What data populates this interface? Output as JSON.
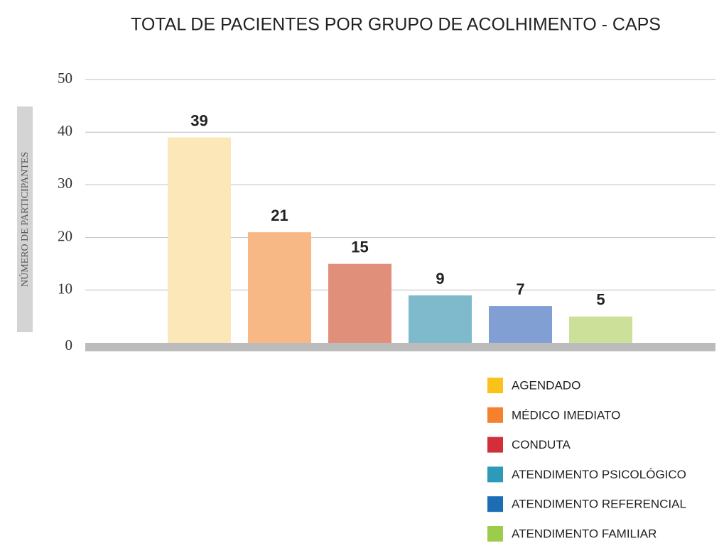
{
  "chart_data": {
    "type": "bar",
    "title": "TOTAL DE PACIENTES POR GRUPO DE ACOLHIMENTO - CAPS",
    "y_label": "NÚMERO DE PARTICIPANTES",
    "categories": [
      "AGENDADO",
      "MÉDICO IMEDIATO",
      "CONDUTA",
      "ATENDIMENTO PSICOLÓGICO",
      "ATENDIMENTO REFERENCIAL",
      "ATENDIMENTO FAMILIAR"
    ],
    "values": [
      39,
      21,
      15,
      9,
      7,
      5
    ],
    "colors": [
      "#fbc21a",
      "#f5812f",
      "#d32f3a",
      "#2d9aba",
      "#1c6db6",
      "#9ccd4a"
    ],
    "bar_colors": [
      "#fbe7b8",
      "#f8b885",
      "#e0907a",
      "#7fb9cc",
      "#829fd4",
      "#cde09a"
    ],
    "ylim": [
      0,
      50
    ],
    "yticks": [
      0,
      10,
      20,
      30,
      40,
      50
    ],
    "grid": true,
    "legend": "bottom-right"
  }
}
